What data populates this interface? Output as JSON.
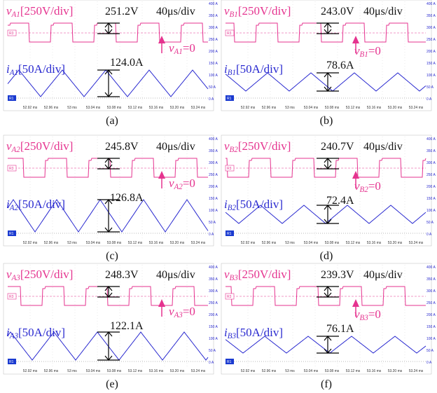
{
  "panels": [
    {
      "voltage_label": {
        "symbol": "v",
        "subscript": "A1",
        "scale": "[250V/div]"
      },
      "voltage_value": "251.2V",
      "time_scale": "40μs/div",
      "zero_label": {
        "symbol": "v",
        "subscript": "A1",
        "equals": "=0"
      },
      "current_label": {
        "symbol": "i",
        "subscript": "A1",
        "scale": "[50A/div]"
      },
      "current_value": "124.0A",
      "caption": "(a)"
    },
    {
      "voltage_label": {
        "symbol": "v",
        "subscript": "B1",
        "scale": "[250V/div]"
      },
      "voltage_value": "243.0V",
      "time_scale": "40μs/div",
      "zero_label": {
        "symbol": "v",
        "subscript": "B1",
        "equals": "=0"
      },
      "current_label": {
        "symbol": "i",
        "subscript": "B1",
        "scale": "[50A/div]"
      },
      "current_value": "78.6A",
      "caption": "(b)"
    },
    {
      "voltage_label": {
        "symbol": "v",
        "subscript": "A2",
        "scale": "[250V/div]"
      },
      "voltage_value": "245.8V",
      "time_scale": "40μs/div",
      "zero_label": {
        "symbol": "v",
        "subscript": "A2",
        "equals": "=0"
      },
      "current_label": {
        "symbol": "i",
        "subscript": "A2",
        "scale": "[50A/div]"
      },
      "current_value": "126.8A",
      "caption": "(c)"
    },
    {
      "voltage_label": {
        "symbol": "v",
        "subscript": "B2",
        "scale": "[250V/div]"
      },
      "voltage_value": "240.7V",
      "time_scale": "40μs/div",
      "zero_label": {
        "symbol": "v",
        "subscript": "B2",
        "equals": "=0"
      },
      "current_label": {
        "symbol": "i",
        "subscript": "B2",
        "scale": "[50A/div]"
      },
      "current_value": "72.4A",
      "caption": "(d)"
    },
    {
      "voltage_label": {
        "symbol": "v",
        "subscript": "A3",
        "scale": "[250V/div]"
      },
      "voltage_value": "248.3V",
      "time_scale": "40μs/div",
      "zero_label": {
        "symbol": "v",
        "subscript": "A3",
        "equals": "=0"
      },
      "current_label": {
        "symbol": "i",
        "subscript": "A3",
        "scale": "[50A/div]"
      },
      "current_value": "122.1A",
      "caption": "(e)"
    },
    {
      "voltage_label": {
        "symbol": "v",
        "subscript": "B3",
        "scale": "[250V/div]"
      },
      "voltage_value": "239.3V",
      "time_scale": "40μs/div",
      "zero_label": {
        "symbol": "v",
        "subscript": "B3",
        "equals": "=0"
      },
      "current_label": {
        "symbol": "i",
        "subscript": "B3",
        "scale": "[50A/div]"
      },
      "current_value": "76.1A",
      "caption": "(f)"
    }
  ],
  "channel_markers": [
    "R3",
    "R1"
  ],
  "x_ticks": [
    "52.92 ms",
    "52.96 ms",
    "53 ms",
    "53.04 ms",
    "53.08 ms",
    "53.12 ms",
    "53.16 ms",
    "53.20 ms",
    "53.24 ms"
  ],
  "y_ticks": [
    "400 A",
    "350 A",
    "300 A",
    "250 A",
    "200 A",
    "150 A",
    "100 A",
    "50 A",
    "0 A"
  ]
}
